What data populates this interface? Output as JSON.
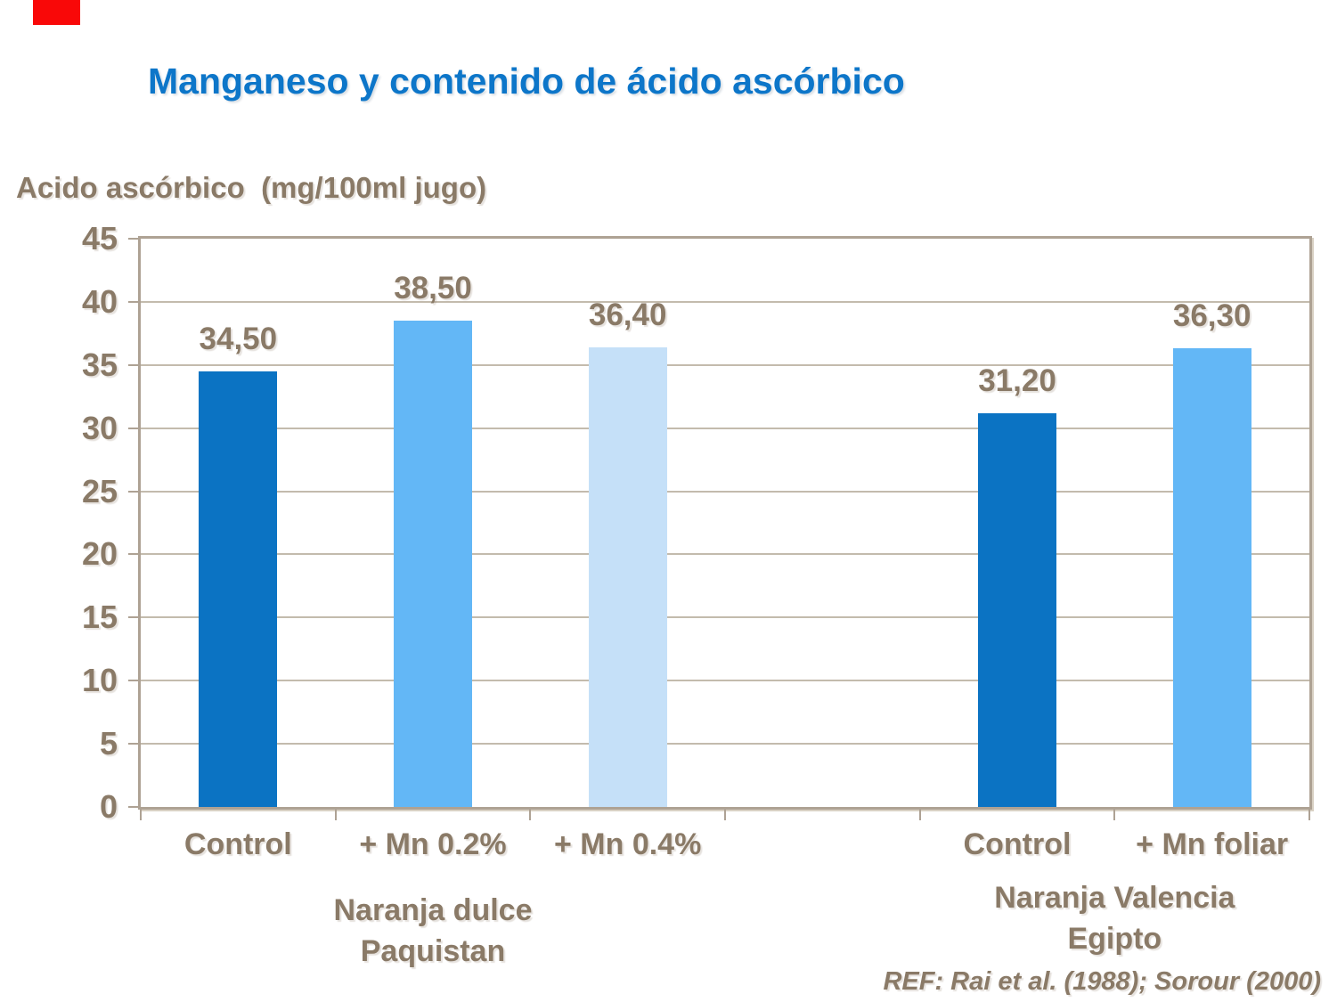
{
  "chart_data": {
    "type": "bar",
    "title": "Manganeso y contenido de ácido ascórbico",
    "ylabel": "Acido ascórbico  (mg/100ml jugo)",
    "xlabel": "",
    "ylim": [
      0,
      45
    ],
    "yticks": [
      0,
      5,
      10,
      15,
      20,
      25,
      30,
      35,
      40,
      45
    ],
    "grid": true,
    "legend": "none",
    "slots": 6,
    "bars": [
      {
        "slot": 0,
        "category": "Control",
        "value": 34.5,
        "value_label": "34,50",
        "color": "dark_blue"
      },
      {
        "slot": 1,
        "category": "+ Mn 0.2%",
        "value": 38.5,
        "value_label": "38,50",
        "color": "medium_blue"
      },
      {
        "slot": 2,
        "category": "+ Mn 0.4%",
        "value": 36.4,
        "value_label": "36,40",
        "color": "light_blue"
      },
      {
        "slot": 4,
        "category": "Control",
        "value": 31.2,
        "value_label": "31,20",
        "color": "dark_blue"
      },
      {
        "slot": 5,
        "category": "+ Mn foliar",
        "value": 36.3,
        "value_label": "36,30",
        "color": "medium_blue"
      }
    ],
    "groups": [
      {
        "lines": [
          "Naranja dulce",
          "Paquistan"
        ],
        "center_slot": 1
      },
      {
        "lines": [
          "Naranja Valencia",
          "Egipto"
        ],
        "center_slot": 4.5
      }
    ],
    "series_colors": {
      "dark_blue": "#0b73c3",
      "medium_blue": "#63b7f6",
      "light_blue": "#c5e0f8"
    },
    "text_color": "#8a7a67",
    "title_color": "#0d76c9",
    "axis_color": "#aea294",
    "gridline_color": "#c3bbad",
    "marker_color": "#f90808",
    "reference": "REF: Rai et al. (1988); Sorour (2000)"
  }
}
